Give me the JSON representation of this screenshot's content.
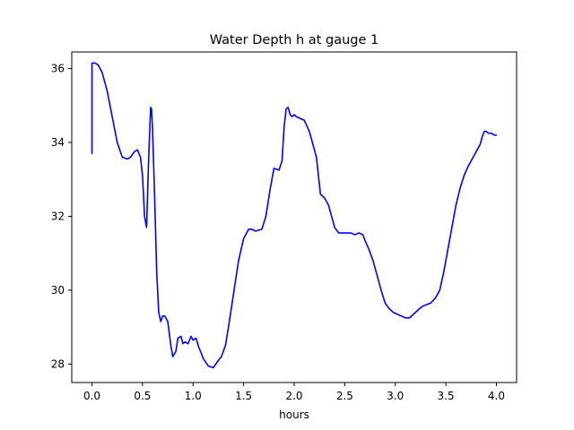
{
  "chart_data": {
    "type": "line",
    "title": "Water Depth h at gauge 1",
    "xlabel": "hours",
    "ylabel": "",
    "xlim": [
      -0.2,
      4.2
    ],
    "ylim": [
      27.5,
      36.45
    ],
    "xticks": [
      "0.0",
      "0.5",
      "1.0",
      "1.5",
      "2.0",
      "2.5",
      "3.0",
      "3.5",
      "4.0"
    ],
    "yticks": [
      "28",
      "30",
      "32",
      "34",
      "36"
    ],
    "grid": false,
    "legend": "none",
    "series": [
      {
        "color": "#0000ff",
        "x": [
          0.0,
          0.0,
          0.01,
          0.03,
          0.06,
          0.1,
          0.15,
          0.2,
          0.25,
          0.3,
          0.35,
          0.38,
          0.42,
          0.45,
          0.48,
          0.5,
          0.52,
          0.54,
          0.56,
          0.58,
          0.59,
          0.6,
          0.62,
          0.64,
          0.66,
          0.68,
          0.7,
          0.72,
          0.75,
          0.78,
          0.8,
          0.83,
          0.85,
          0.88,
          0.9,
          0.92,
          0.95,
          0.98,
          1.0,
          1.03,
          1.05,
          1.08,
          1.1,
          1.15,
          1.2,
          1.25,
          1.28,
          1.32,
          1.35,
          1.4,
          1.45,
          1.5,
          1.55,
          1.58,
          1.62,
          1.68,
          1.72,
          1.76,
          1.8,
          1.85,
          1.88,
          1.9,
          1.92,
          1.94,
          1.96,
          1.98,
          2.0,
          2.02,
          2.06,
          2.1,
          2.15,
          2.18,
          2.22,
          2.26,
          2.3,
          2.32,
          2.34,
          2.36,
          2.38,
          2.4,
          2.44,
          2.48,
          2.52,
          2.56,
          2.6,
          2.64,
          2.68,
          2.7,
          2.74,
          2.78,
          2.82,
          2.86,
          2.9,
          2.94,
          2.98,
          3.02,
          3.06,
          3.1,
          3.14,
          3.18,
          3.22,
          3.26,
          3.3,
          3.35,
          3.4,
          3.44,
          3.48,
          3.52,
          3.56,
          3.6,
          3.64,
          3.68,
          3.72,
          3.76,
          3.8,
          3.84,
          3.86,
          3.88,
          3.9,
          3.92,
          3.95,
          3.98,
          4.0
        ],
        "y": [
          33.7,
          36.15,
          36.15,
          36.15,
          36.1,
          35.9,
          35.4,
          34.7,
          34.0,
          33.6,
          33.55,
          33.6,
          33.75,
          33.8,
          33.6,
          33.1,
          32.0,
          31.7,
          33.5,
          34.95,
          34.9,
          34.3,
          32.5,
          30.5,
          29.4,
          29.15,
          29.3,
          29.3,
          29.15,
          28.5,
          28.2,
          28.35,
          28.7,
          28.75,
          28.55,
          28.6,
          28.55,
          28.75,
          28.65,
          28.7,
          28.5,
          28.3,
          28.15,
          27.95,
          27.9,
          28.1,
          28.2,
          28.5,
          29.0,
          29.9,
          30.8,
          31.4,
          31.65,
          31.65,
          31.6,
          31.65,
          32.0,
          32.7,
          33.3,
          33.25,
          33.5,
          34.4,
          34.9,
          34.95,
          34.75,
          34.7,
          34.75,
          34.7,
          34.65,
          34.6,
          34.3,
          34.0,
          33.6,
          32.6,
          32.5,
          32.4,
          32.3,
          32.1,
          31.9,
          31.7,
          31.55,
          31.55,
          31.55,
          31.55,
          31.5,
          31.55,
          31.5,
          31.35,
          31.1,
          30.8,
          30.4,
          30.0,
          29.65,
          29.5,
          29.4,
          29.35,
          29.3,
          29.25,
          29.25,
          29.35,
          29.45,
          29.55,
          29.6,
          29.65,
          29.8,
          30.0,
          30.5,
          31.1,
          31.7,
          32.3,
          32.75,
          33.1,
          33.35,
          33.55,
          33.75,
          33.95,
          34.15,
          34.3,
          34.3,
          34.25,
          34.25,
          34.2,
          34.2
        ]
      }
    ]
  }
}
